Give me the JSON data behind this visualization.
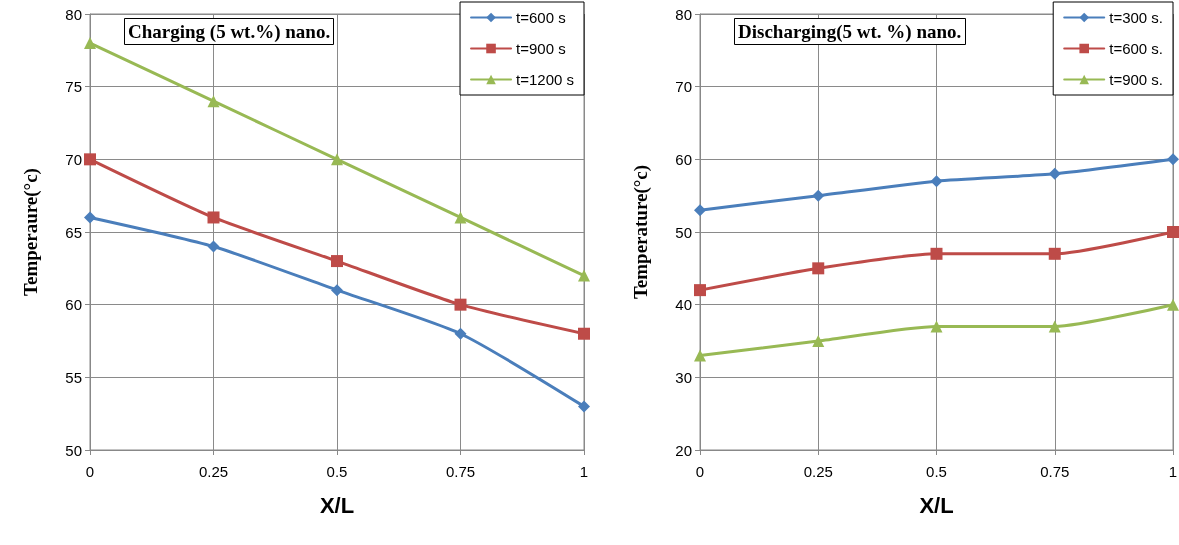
{
  "chart_data": [
    {
      "type": "line",
      "title": "Charging (5 wt.%) nano.",
      "xlabel": "X/L",
      "ylabel": "Temperaure(°c)",
      "x": [
        0,
        0.25,
        0.5,
        0.75,
        1
      ],
      "xlim": [
        0,
        1
      ],
      "xticks": [
        0,
        0.25,
        0.5,
        0.75,
        1
      ],
      "ylim": [
        50,
        80
      ],
      "yticks": [
        50,
        55,
        60,
        65,
        70,
        75,
        80
      ],
      "grid": true,
      "legend": "top right",
      "series": [
        {
          "name": "t=600 s",
          "color": "#4a7ebb",
          "marker": "diamond",
          "values": [
            66,
            64,
            61,
            58,
            53
          ]
        },
        {
          "name": "t=900 s",
          "color": "#be4b48",
          "marker": "square",
          "values": [
            70,
            66,
            63,
            60,
            58
          ]
        },
        {
          "name": "t=1200 s",
          "color": "#98b954",
          "marker": "triangle",
          "values": [
            78,
            74,
            70,
            66,
            62
          ]
        }
      ]
    },
    {
      "type": "line",
      "title": "Discharging(5 wt. %) nano.",
      "xlabel": "X/L",
      "ylabel": "Temperature(°c)",
      "x": [
        0,
        0.25,
        0.5,
        0.75,
        1
      ],
      "xlim": [
        0,
        1
      ],
      "xticks": [
        0,
        0.25,
        0.5,
        0.75,
        1
      ],
      "ylim": [
        20,
        80
      ],
      "yticks": [
        20,
        30,
        40,
        50,
        60,
        70,
        80
      ],
      "grid": true,
      "legend": "top right",
      "series": [
        {
          "name": "t=300 s.",
          "color": "#4a7ebb",
          "marker": "diamond",
          "values": [
            53,
            55,
            57,
            58,
            60
          ]
        },
        {
          "name": "t=600 s.",
          "color": "#be4b48",
          "marker": "square",
          "values": [
            42,
            45,
            47,
            47,
            50
          ]
        },
        {
          "name": "t=900 s.",
          "color": "#98b954",
          "marker": "triangle",
          "values": [
            33,
            35,
            37,
            37,
            40
          ]
        }
      ]
    }
  ]
}
